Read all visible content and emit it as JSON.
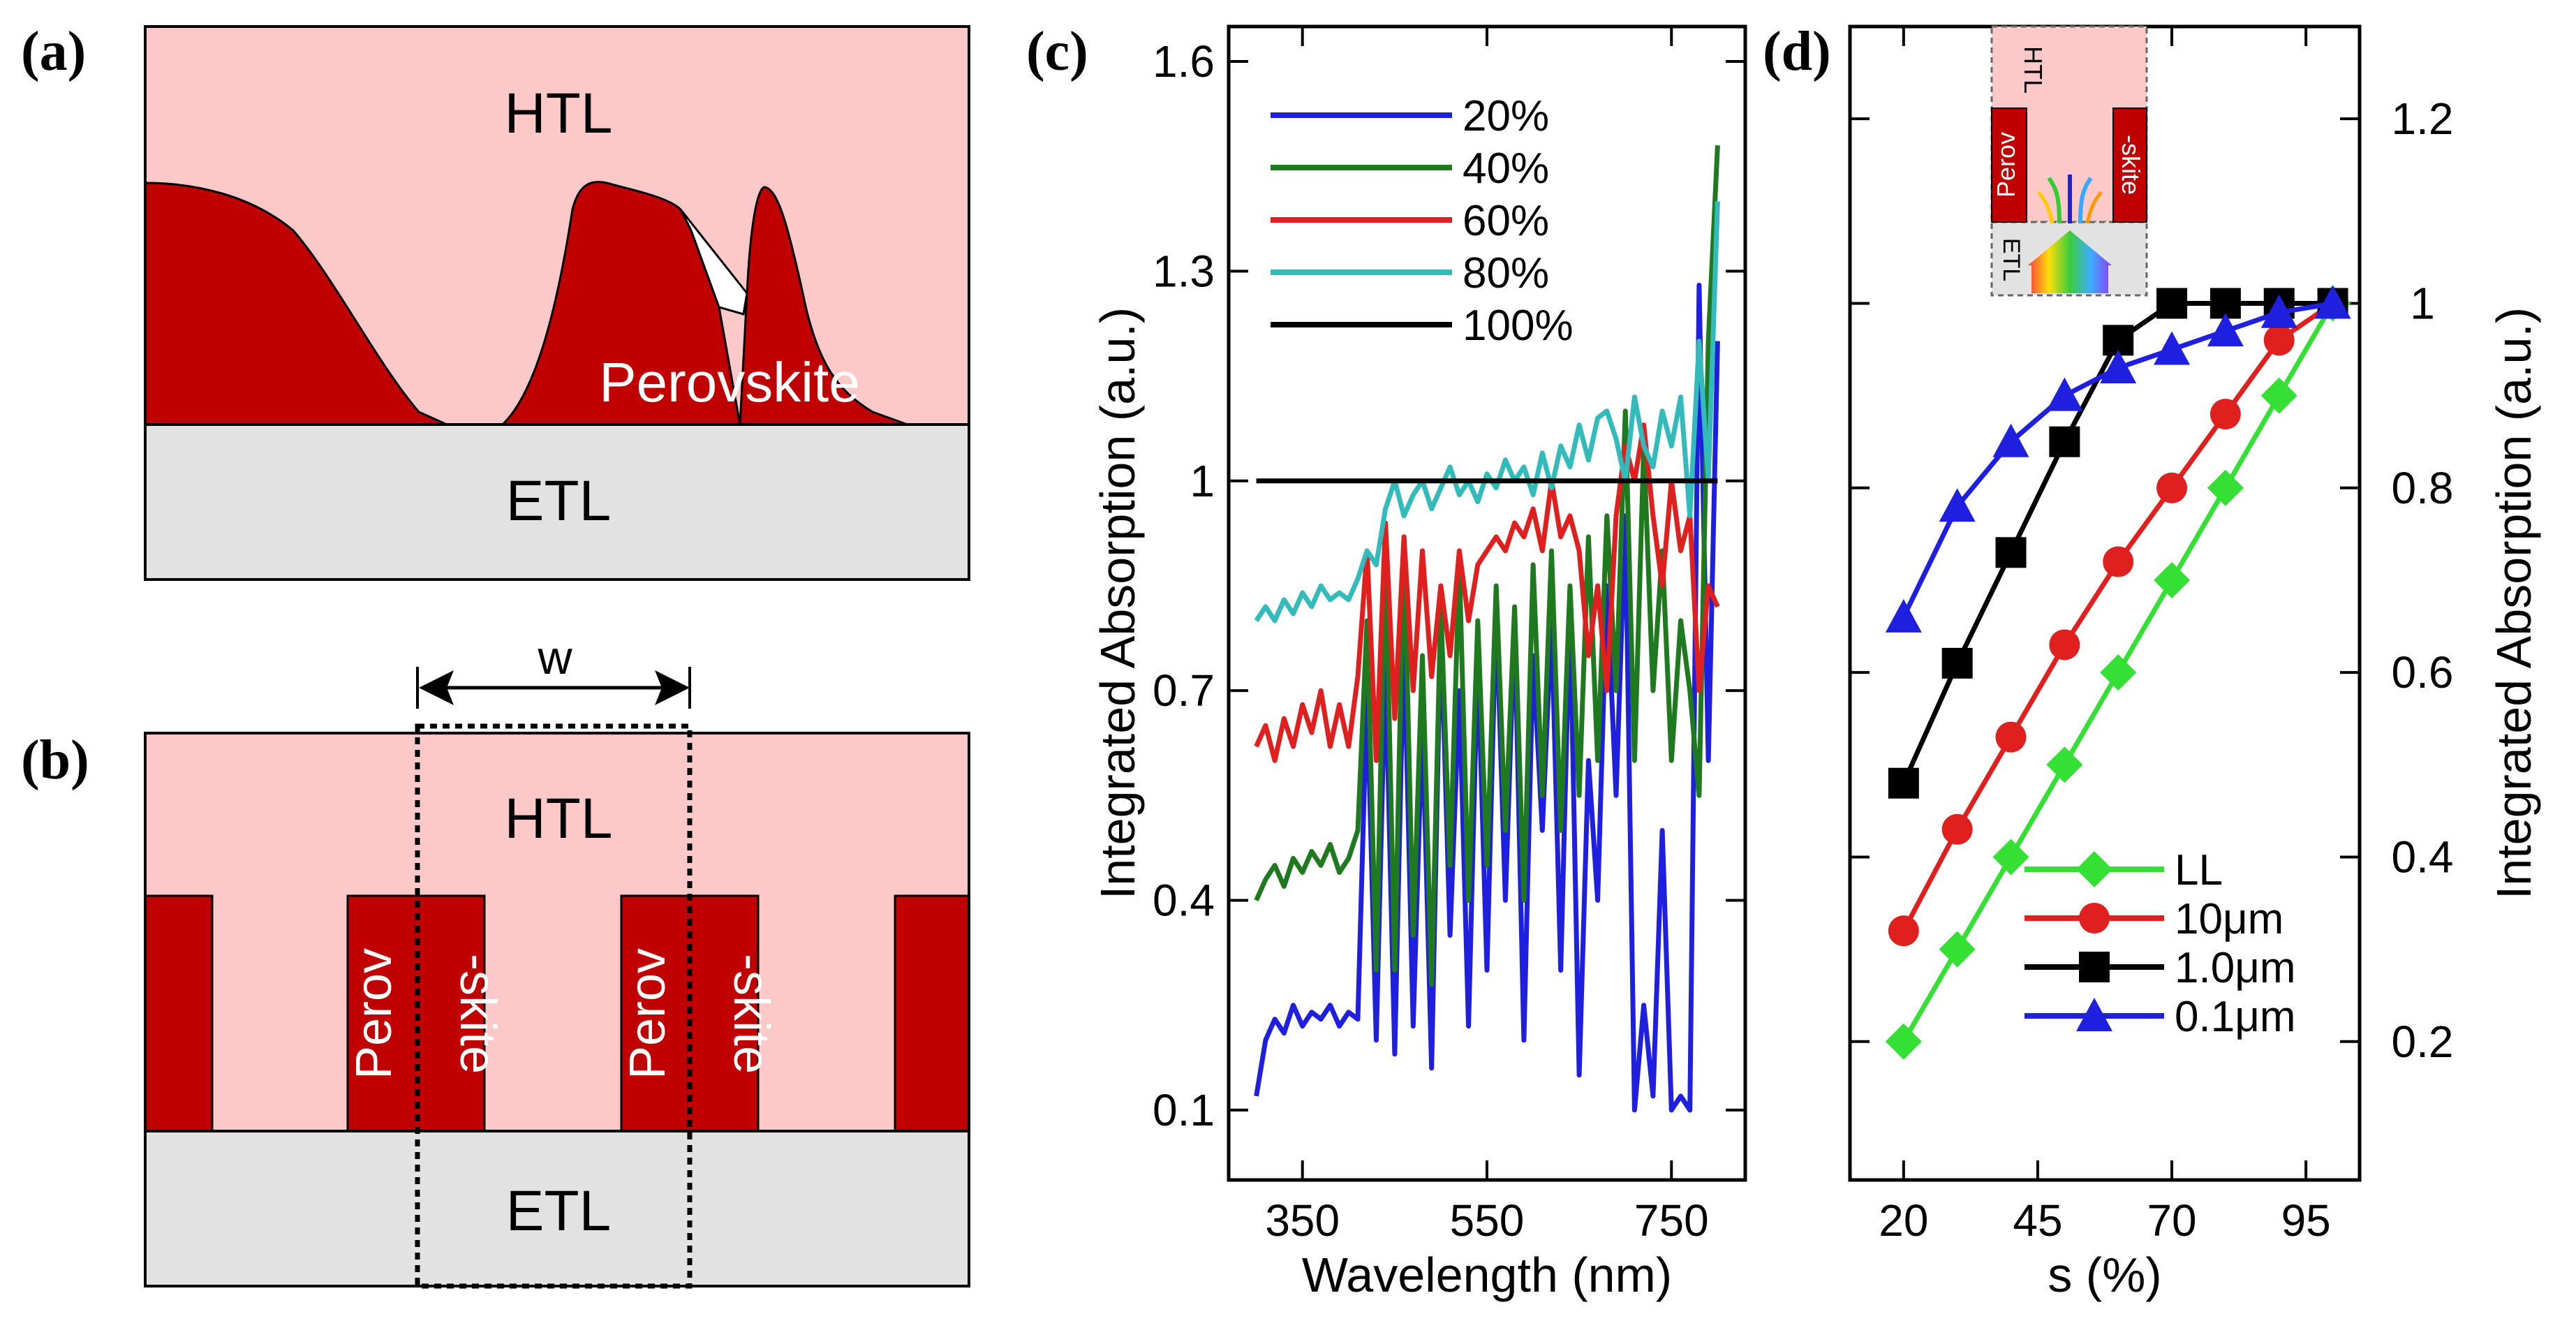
{
  "panels": {
    "a": {
      "label": "(a)",
      "htl": "HTL",
      "etl": "ETL",
      "perovskite": "Perovskite",
      "colors": {
        "htl": "#fdc8c8",
        "perovskite": "#c00000",
        "etl": "#e2e2e2"
      }
    },
    "b": {
      "label": "(b)",
      "htl": "HTL",
      "etl": "ETL",
      "width_label": "w",
      "perov_line1": "Perov",
      "perov_line2": "-skite"
    },
    "c": {
      "label": "(c)"
    },
    "d": {
      "label": "(d)",
      "inset": {
        "htl": "HTL",
        "etl": "ETL",
        "perov": "Perov",
        "skite": "-skite"
      }
    }
  },
  "chart_data": [
    {
      "id": "c",
      "type": "line",
      "xlabel": "Wavelength (nm)",
      "ylabel": "Integrated Absorption (a.u.)",
      "xlim": [
        270,
        830
      ],
      "ylim": [
        0.0,
        1.65
      ],
      "xticks": [
        350,
        550,
        750
      ],
      "yticks": [
        0.1,
        0.4,
        0.7,
        1,
        1.3,
        1.6
      ],
      "series": [
        {
          "name": "20%",
          "color": "#1f1fe0",
          "x": [
            300,
            310,
            320,
            330,
            340,
            350,
            360,
            370,
            380,
            390,
            400,
            410,
            420,
            430,
            440,
            450,
            460,
            470,
            480,
            490,
            500,
            510,
            520,
            530,
            540,
            550,
            560,
            570,
            580,
            590,
            600,
            610,
            620,
            630,
            640,
            650,
            660,
            670,
            680,
            690,
            700,
            710,
            720,
            730,
            740,
            750,
            760,
            770,
            780,
            790,
            800
          ],
          "y": [
            0.12,
            0.2,
            0.23,
            0.21,
            0.25,
            0.22,
            0.24,
            0.23,
            0.25,
            0.22,
            0.24,
            0.23,
            0.7,
            0.2,
            0.74,
            0.18,
            0.78,
            0.22,
            0.66,
            0.16,
            0.8,
            0.35,
            0.7,
            0.22,
            0.75,
            0.3,
            0.82,
            0.4,
            0.8,
            0.2,
            0.75,
            0.5,
            0.8,
            0.3,
            0.82,
            0.15,
            0.6,
            0.4,
            0.85,
            0.55,
            0.95,
            0.1,
            0.25,
            0.12,
            0.5,
            0.1,
            0.12,
            0.1,
            1.28,
            0.6,
            1.2
          ]
        },
        {
          "name": "40%",
          "color": "#1f7a1f",
          "x": [
            300,
            310,
            320,
            330,
            340,
            350,
            360,
            370,
            380,
            390,
            400,
            410,
            420,
            430,
            440,
            450,
            460,
            470,
            480,
            490,
            500,
            510,
            520,
            530,
            540,
            550,
            560,
            570,
            580,
            590,
            600,
            610,
            620,
            630,
            640,
            650,
            660,
            670,
            680,
            690,
            700,
            710,
            720,
            730,
            740,
            750,
            760,
            770,
            780,
            790,
            800
          ],
          "y": [
            0.4,
            0.43,
            0.45,
            0.42,
            0.46,
            0.44,
            0.47,
            0.45,
            0.48,
            0.44,
            0.46,
            0.5,
            0.8,
            0.3,
            0.9,
            0.3,
            0.92,
            0.35,
            0.75,
            0.28,
            0.82,
            0.45,
            0.88,
            0.4,
            0.8,
            0.45,
            0.85,
            0.5,
            0.82,
            0.4,
            0.88,
            0.55,
            0.9,
            0.5,
            0.85,
            0.55,
            0.92,
            0.6,
            0.95,
            0.7,
            1.1,
            0.6,
            1.05,
            0.7,
            0.9,
            0.6,
            0.8,
            0.7,
            0.55,
            1.2,
            1.48
          ]
        },
        {
          "name": "60%",
          "color": "#e01f1f",
          "x": [
            300,
            310,
            320,
            330,
            340,
            350,
            360,
            370,
            380,
            390,
            400,
            410,
            420,
            430,
            440,
            450,
            460,
            470,
            480,
            490,
            500,
            510,
            520,
            530,
            540,
            550,
            560,
            570,
            580,
            590,
            600,
            610,
            620,
            630,
            640,
            650,
            660,
            670,
            680,
            690,
            700,
            710,
            720,
            730,
            740,
            750,
            760,
            770,
            780,
            790,
            800
          ],
          "y": [
            0.62,
            0.65,
            0.6,
            0.66,
            0.62,
            0.68,
            0.64,
            0.7,
            0.62,
            0.68,
            0.62,
            0.72,
            0.9,
            0.6,
            0.94,
            0.66,
            0.92,
            0.7,
            0.9,
            0.72,
            0.85,
            0.75,
            0.9,
            0.8,
            0.88,
            0.9,
            0.92,
            0.9,
            0.94,
            0.92,
            0.96,
            0.9,
            1.0,
            0.92,
            0.95,
            0.9,
            0.75,
            0.85,
            0.7,
            0.95,
            1.05,
            1.0,
            1.08,
            0.95,
            0.85,
            1.0,
            0.9,
            0.95,
            0.7,
            0.85,
            0.82
          ]
        },
        {
          "name": "80%",
          "color": "#33bbbb",
          "x": [
            300,
            310,
            320,
            330,
            340,
            350,
            360,
            370,
            380,
            390,
            400,
            410,
            420,
            430,
            440,
            450,
            460,
            470,
            480,
            490,
            500,
            510,
            520,
            530,
            540,
            550,
            560,
            570,
            580,
            590,
            600,
            610,
            620,
            630,
            640,
            650,
            660,
            670,
            680,
            690,
            700,
            710,
            720,
            730,
            740,
            750,
            760,
            770,
            780,
            790,
            800
          ],
          "y": [
            0.8,
            0.82,
            0.8,
            0.83,
            0.81,
            0.84,
            0.82,
            0.85,
            0.83,
            0.84,
            0.83,
            0.86,
            0.9,
            0.88,
            0.96,
            1.0,
            0.95,
            0.98,
            1.0,
            0.96,
            0.99,
            1.02,
            0.98,
            1.0,
            0.97,
            1.01,
            0.99,
            1.03,
            1.0,
            1.02,
            0.98,
            1.04,
            0.99,
            1.05,
            1.02,
            1.08,
            1.03,
            1.09,
            1.1,
            1.06,
            1.0,
            1.12,
            1.05,
            1.02,
            1.1,
            1.05,
            1.12,
            0.95,
            1.2,
            1.0,
            1.4
          ]
        },
        {
          "name": "100%",
          "color": "#000000",
          "x": [
            300,
            800
          ],
          "y": [
            1.0,
            1.0
          ]
        }
      ]
    },
    {
      "id": "d",
      "type": "line",
      "xlabel": "s (%)",
      "ylabel": "Integrated Absorption (a.u.)",
      "xlim": [
        10,
        105
      ],
      "ylim": [
        0.05,
        1.3
      ],
      "xticks": [
        20,
        45,
        70,
        95
      ],
      "yticks": [
        0.2,
        0.4,
        0.6,
        0.8,
        1,
        1.2
      ],
      "series": [
        {
          "name": "LL",
          "color": "#33e033",
          "marker": "diamond",
          "x": [
            20,
            30,
            40,
            50,
            60,
            70,
            80,
            90,
            100
          ],
          "y": [
            0.2,
            0.3,
            0.4,
            0.5,
            0.6,
            0.7,
            0.8,
            0.9,
            1.0
          ]
        },
        {
          "name": "10μm",
          "color": "#e01f1f",
          "marker": "circle",
          "x": [
            20,
            30,
            40,
            50,
            60,
            70,
            80,
            90,
            100
          ],
          "y": [
            0.32,
            0.43,
            0.53,
            0.63,
            0.72,
            0.8,
            0.88,
            0.96,
            1.0
          ]
        },
        {
          "name": "1.0μm",
          "color": "#000000",
          "marker": "square",
          "x": [
            20,
            30,
            40,
            50,
            60,
            70,
            80,
            90,
            100
          ],
          "y": [
            0.48,
            0.61,
            0.73,
            0.85,
            0.96,
            1.0,
            1.0,
            1.0,
            1.0
          ]
        },
        {
          "name": "0.1μm",
          "color": "#1f1fe0",
          "marker": "triangle",
          "x": [
            20,
            30,
            40,
            50,
            60,
            70,
            80,
            90,
            100
          ],
          "y": [
            0.66,
            0.78,
            0.85,
            0.9,
            0.93,
            0.95,
            0.97,
            0.99,
            1.0
          ]
        }
      ]
    }
  ]
}
